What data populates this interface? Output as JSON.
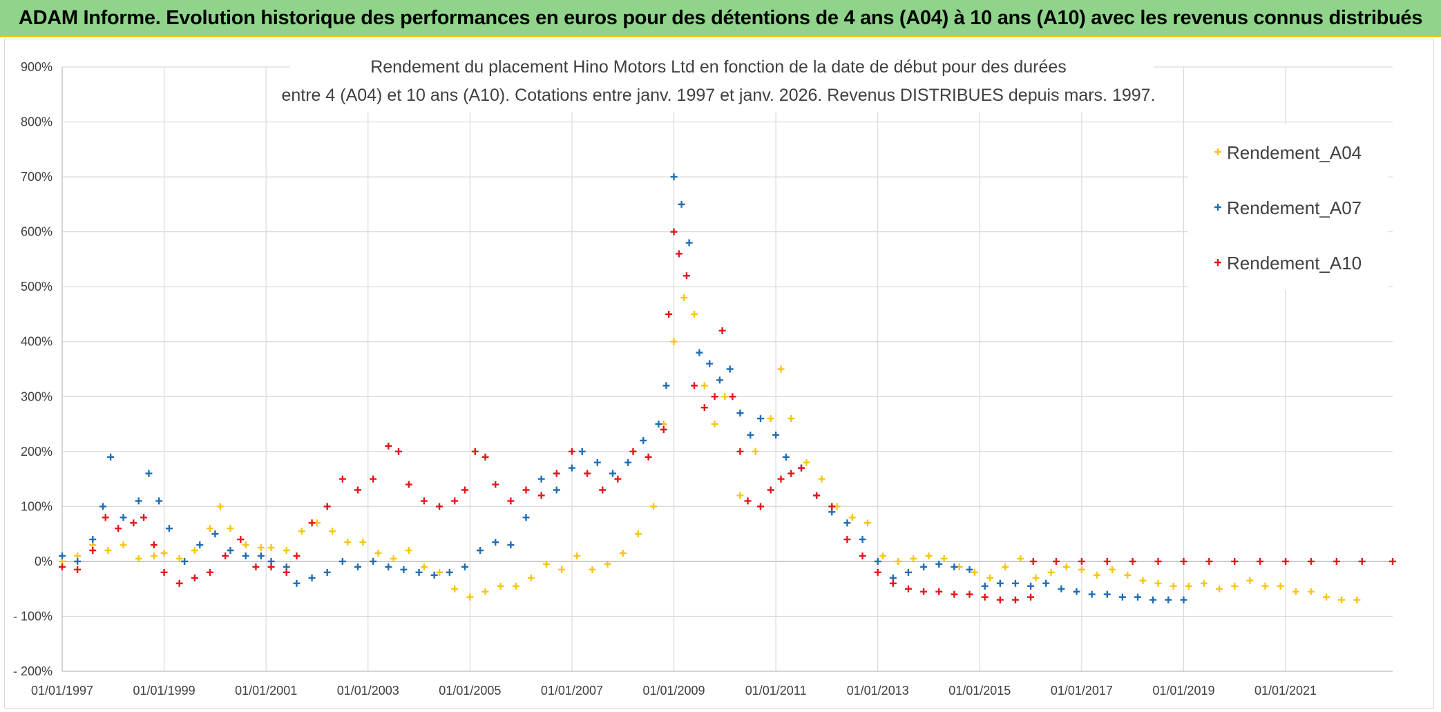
{
  "header": {
    "banner": "ADAM Informe. Evolution historique des performances en euros pour des détentions de 4 ans (A04) à 10 ans (A10) avec les revenus connus distribués"
  },
  "chart_data": {
    "type": "scatter",
    "title": "Rendement du placement Hino Motors Ltd en fonction de la date de début pour des durées",
    "subtitle": "entre 4 (A04) et 10 ans (A10). Cotations entre janv. 1997 et janv. 2026. Revenus DISTRIBUES depuis mars. 1997.",
    "xlabel": "",
    "ylabel": "",
    "xlim": [
      1997.0,
      2023.1
    ],
    "ylim": [
      -200,
      900
    ],
    "x_ticks": [
      1997,
      1999,
      2001,
      2003,
      2005,
      2007,
      2009,
      2011,
      2013,
      2015,
      2017,
      2019,
      2021
    ],
    "x_tick_labels": [
      "01/01/1997",
      "01/01/1999",
      "01/01/2001",
      "01/01/2003",
      "01/01/2005",
      "01/01/2007",
      "01/01/2009",
      "01/01/2011",
      "01/01/2013",
      "01/01/2015",
      "01/01/2017",
      "01/01/2019",
      "01/01/2021"
    ],
    "y_ticks": [
      -200,
      -100,
      0,
      100,
      200,
      300,
      400,
      500,
      600,
      700,
      800,
      900
    ],
    "y_tick_labels": [
      "- 200%",
      "- 100%",
      "0%",
      "100%",
      "200%",
      "300%",
      "400%",
      "500%",
      "600%",
      "700%",
      "800%",
      "900%"
    ],
    "grid": true,
    "legend_position": "top-right",
    "series": [
      {
        "name": "Rendement_A04",
        "color": "#f5c518",
        "marker": "plus",
        "points": [
          [
            1997.0,
            0
          ],
          [
            1997.3,
            10
          ],
          [
            1997.6,
            30
          ],
          [
            1997.9,
            20
          ],
          [
            1998.2,
            30
          ],
          [
            1998.5,
            5
          ],
          [
            1998.8,
            10
          ],
          [
            1999.0,
            15
          ],
          [
            1999.3,
            5
          ],
          [
            1999.6,
            20
          ],
          [
            1999.9,
            60
          ],
          [
            2000.1,
            100
          ],
          [
            2000.3,
            60
          ],
          [
            2000.6,
            30
          ],
          [
            2000.9,
            25
          ],
          [
            2001.1,
            25
          ],
          [
            2001.4,
            20
          ],
          [
            2001.7,
            55
          ],
          [
            2002.0,
            70
          ],
          [
            2002.3,
            55
          ],
          [
            2002.6,
            35
          ],
          [
            2002.9,
            35
          ],
          [
            2003.2,
            15
          ],
          [
            2003.5,
            5
          ],
          [
            2003.8,
            20
          ],
          [
            2004.1,
            -10
          ],
          [
            2004.4,
            -20
          ],
          [
            2004.7,
            -50
          ],
          [
            2005.0,
            -65
          ],
          [
            2005.3,
            -55
          ],
          [
            2005.6,
            -45
          ],
          [
            2005.9,
            -45
          ],
          [
            2006.2,
            -30
          ],
          [
            2006.5,
            -5
          ],
          [
            2006.8,
            -15
          ],
          [
            2007.1,
            10
          ],
          [
            2007.4,
            -15
          ],
          [
            2007.7,
            -5
          ],
          [
            2008.0,
            15
          ],
          [
            2008.3,
            50
          ],
          [
            2008.6,
            100
          ],
          [
            2008.8,
            250
          ],
          [
            2009.0,
            400
          ],
          [
            2009.2,
            480
          ],
          [
            2009.4,
            450
          ],
          [
            2009.6,
            320
          ],
          [
            2009.8,
            250
          ],
          [
            2010.0,
            300
          ],
          [
            2010.3,
            120
          ],
          [
            2010.6,
            200
          ],
          [
            2010.9,
            260
          ],
          [
            2011.1,
            350
          ],
          [
            2011.3,
            260
          ],
          [
            2011.6,
            180
          ],
          [
            2011.9,
            150
          ],
          [
            2012.2,
            100
          ],
          [
            2012.5,
            80
          ],
          [
            2012.8,
            70
          ],
          [
            2013.1,
            10
          ],
          [
            2013.4,
            0
          ],
          [
            2013.7,
            5
          ],
          [
            2014.0,
            10
          ],
          [
            2014.3,
            5
          ],
          [
            2014.6,
            -10
          ],
          [
            2014.9,
            -20
          ],
          [
            2015.2,
            -30
          ],
          [
            2015.5,
            -10
          ],
          [
            2015.8,
            5
          ],
          [
            2016.1,
            -30
          ],
          [
            2016.4,
            -20
          ],
          [
            2016.7,
            -10
          ],
          [
            2017.0,
            -15
          ],
          [
            2017.3,
            -25
          ],
          [
            2017.6,
            -15
          ],
          [
            2017.9,
            -25
          ],
          [
            2018.2,
            -35
          ],
          [
            2018.5,
            -40
          ],
          [
            2018.8,
            -45
          ],
          [
            2019.1,
            -45
          ],
          [
            2019.4,
            -40
          ],
          [
            2019.7,
            -50
          ],
          [
            2020.0,
            -45
          ],
          [
            2020.3,
            -35
          ],
          [
            2020.6,
            -45
          ],
          [
            2020.9,
            -45
          ],
          [
            2021.2,
            -55
          ],
          [
            2021.5,
            -55
          ],
          [
            2021.8,
            -65
          ],
          [
            2022.1,
            -70
          ],
          [
            2022.4,
            -70
          ]
        ]
      },
      {
        "name": "Rendement_A07",
        "color": "#1f6db5",
        "marker": "plus",
        "points": [
          [
            1997.0,
            10
          ],
          [
            1997.3,
            0
          ],
          [
            1997.6,
            40
          ],
          [
            1997.8,
            100
          ],
          [
            1997.95,
            190
          ],
          [
            1998.2,
            80
          ],
          [
            1998.5,
            110
          ],
          [
            1998.7,
            160
          ],
          [
            1998.9,
            110
          ],
          [
            1999.1,
            60
          ],
          [
            1999.4,
            0
          ],
          [
            1999.7,
            30
          ],
          [
            2000.0,
            50
          ],
          [
            2000.3,
            20
          ],
          [
            2000.6,
            10
          ],
          [
            2000.9,
            10
          ],
          [
            2001.1,
            0
          ],
          [
            2001.4,
            -10
          ],
          [
            2001.6,
            -40
          ],
          [
            2001.9,
            -30
          ],
          [
            2002.2,
            -20
          ],
          [
            2002.5,
            0
          ],
          [
            2002.8,
            -10
          ],
          [
            2003.1,
            0
          ],
          [
            2003.4,
            -10
          ],
          [
            2003.7,
            -15
          ],
          [
            2004.0,
            -20
          ],
          [
            2004.3,
            -25
          ],
          [
            2004.6,
            -20
          ],
          [
            2004.9,
            -10
          ],
          [
            2005.2,
            20
          ],
          [
            2005.5,
            35
          ],
          [
            2005.8,
            30
          ],
          [
            2006.1,
            80
          ],
          [
            2006.4,
            150
          ],
          [
            2006.7,
            130
          ],
          [
            2007.0,
            170
          ],
          [
            2007.2,
            200
          ],
          [
            2007.5,
            180
          ],
          [
            2007.8,
            160
          ],
          [
            2008.1,
            180
          ],
          [
            2008.4,
            220
          ],
          [
            2008.7,
            250
          ],
          [
            2008.85,
            320
          ],
          [
            2009.0,
            700
          ],
          [
            2009.15,
            650
          ],
          [
            2009.3,
            580
          ],
          [
            2009.5,
            380
          ],
          [
            2009.7,
            360
          ],
          [
            2009.9,
            330
          ],
          [
            2010.1,
            350
          ],
          [
            2010.3,
            270
          ],
          [
            2010.5,
            230
          ],
          [
            2010.7,
            260
          ],
          [
            2011.0,
            230
          ],
          [
            2011.2,
            190
          ],
          [
            2011.5,
            170
          ],
          [
            2011.8,
            120
          ],
          [
            2012.1,
            90
          ],
          [
            2012.4,
            70
          ],
          [
            2012.7,
            40
          ],
          [
            2013.0,
            0
          ],
          [
            2013.3,
            -30
          ],
          [
            2013.6,
            -20
          ],
          [
            2013.9,
            -10
          ],
          [
            2014.2,
            -5
          ],
          [
            2014.5,
            -10
          ],
          [
            2014.8,
            -15
          ],
          [
            2015.1,
            -45
          ],
          [
            2015.4,
            -40
          ],
          [
            2015.7,
            -40
          ],
          [
            2016.0,
            -45
          ],
          [
            2016.3,
            -40
          ],
          [
            2016.6,
            -50
          ],
          [
            2016.9,
            -55
          ],
          [
            2017.2,
            -60
          ],
          [
            2017.5,
            -60
          ],
          [
            2017.8,
            -65
          ],
          [
            2018.1,
            -65
          ],
          [
            2018.4,
            -70
          ],
          [
            2018.7,
            -70
          ],
          [
            2019.0,
            -70
          ]
        ]
      },
      {
        "name": "Rendement_A10",
        "color": "#e3161b",
        "marker": "plus",
        "points": [
          [
            1997.0,
            -10
          ],
          [
            1997.3,
            -15
          ],
          [
            1997.6,
            20
          ],
          [
            1997.85,
            80
          ],
          [
            1998.1,
            60
          ],
          [
            1998.4,
            70
          ],
          [
            1998.6,
            80
          ],
          [
            1998.8,
            30
          ],
          [
            1999.0,
            -20
          ],
          [
            1999.3,
            -40
          ],
          [
            1999.6,
            -30
          ],
          [
            1999.9,
            -20
          ],
          [
            2000.2,
            10
          ],
          [
            2000.5,
            40
          ],
          [
            2000.8,
            -10
          ],
          [
            2001.1,
            -10
          ],
          [
            2001.4,
            -20
          ],
          [
            2001.6,
            10
          ],
          [
            2001.9,
            70
          ],
          [
            2002.2,
            100
          ],
          [
            2002.5,
            150
          ],
          [
            2002.8,
            130
          ],
          [
            2003.1,
            150
          ],
          [
            2003.4,
            210
          ],
          [
            2003.6,
            200
          ],
          [
            2003.8,
            140
          ],
          [
            2004.1,
            110
          ],
          [
            2004.4,
            100
          ],
          [
            2004.7,
            110
          ],
          [
            2004.9,
            130
          ],
          [
            2005.1,
            200
          ],
          [
            2005.3,
            190
          ],
          [
            2005.5,
            140
          ],
          [
            2005.8,
            110
          ],
          [
            2006.1,
            130
          ],
          [
            2006.4,
            120
          ],
          [
            2006.7,
            160
          ],
          [
            2007.0,
            200
          ],
          [
            2007.3,
            160
          ],
          [
            2007.6,
            130
          ],
          [
            2007.9,
            150
          ],
          [
            2008.2,
            200
          ],
          [
            2008.5,
            190
          ],
          [
            2008.8,
            240
          ],
          [
            2008.9,
            450
          ],
          [
            2009.0,
            600
          ],
          [
            2009.1,
            560
          ],
          [
            2009.25,
            520
          ],
          [
            2009.4,
            320
          ],
          [
            2009.6,
            280
          ],
          [
            2009.8,
            300
          ],
          [
            2009.95,
            420
          ],
          [
            2010.15,
            300
          ],
          [
            2010.3,
            200
          ],
          [
            2010.45,
            110
          ],
          [
            2010.7,
            100
          ],
          [
            2010.9,
            130
          ],
          [
            2011.1,
            150
          ],
          [
            2011.3,
            160
          ],
          [
            2011.5,
            170
          ],
          [
            2011.8,
            120
          ],
          [
            2012.1,
            100
          ],
          [
            2012.4,
            40
          ],
          [
            2012.7,
            10
          ],
          [
            2013.0,
            -20
          ],
          [
            2013.3,
            -40
          ],
          [
            2013.6,
            -50
          ],
          [
            2013.9,
            -55
          ],
          [
            2014.2,
            -55
          ],
          [
            2014.5,
            -60
          ],
          [
            2014.8,
            -60
          ],
          [
            2015.1,
            -65
          ],
          [
            2015.4,
            -70
          ],
          [
            2015.7,
            -70
          ],
          [
            2016.0,
            -65
          ],
          [
            2016.05,
            0
          ],
          [
            2016.5,
            0
          ],
          [
            2017.0,
            0
          ],
          [
            2017.5,
            0
          ],
          [
            2018.0,
            0
          ],
          [
            2018.5,
            0
          ],
          [
            2019.0,
            0
          ],
          [
            2019.5,
            0
          ],
          [
            2020.0,
            0
          ],
          [
            2020.5,
            0
          ],
          [
            2021.0,
            0
          ],
          [
            2021.5,
            0
          ],
          [
            2022.0,
            0
          ],
          [
            2022.5,
            0
          ],
          [
            2023.1,
            0
          ]
        ]
      }
    ]
  }
}
